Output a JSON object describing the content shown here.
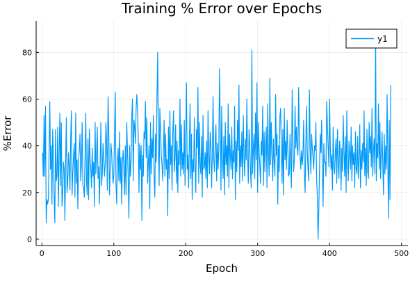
{
  "chart_data": {
    "type": "line",
    "title": "Training % Error over Epochs",
    "xlabel": "Epoch",
    "ylabel": "%Error",
    "xlim": [
      -8,
      509
    ],
    "ylim": [
      -2.7,
      93.5
    ],
    "xticks": [
      0,
      100,
      200,
      300,
      400,
      500
    ],
    "yticks": [
      0,
      20,
      40,
      60,
      80
    ],
    "grid": true,
    "legend": {
      "position": "top-right"
    },
    "series": [
      {
        "name": "y1",
        "color": "#009AFA",
        "x_start": 1,
        "x_step": 1,
        "values": [
          37,
          27,
          53,
          27,
          57,
          7,
          17,
          15,
          17,
          38,
          59,
          30,
          40,
          15,
          47,
          35,
          18,
          7,
          47,
          25,
          27,
          48,
          14,
          37,
          54,
          23,
          50,
          14,
          20,
          33,
          30,
          8,
          33,
          52,
          20,
          25,
          37,
          31,
          21,
          43,
          55,
          19,
          29,
          36,
          41,
          18,
          54,
          24,
          34,
          13,
          34,
          38,
          45,
          25,
          32,
          50,
          23,
          22,
          18,
          36,
          54,
          25,
          19,
          43,
          17,
          47,
          35,
          30,
          22,
          39,
          27,
          33,
          14,
          50,
          28,
          36,
          48,
          26,
          31,
          15,
          32,
          50,
          23,
          28,
          41,
          35,
          27,
          32,
          50,
          42,
          21,
          61,
          46,
          19,
          30,
          41,
          37,
          29,
          24,
          28,
          45,
          63,
          24,
          15,
          34,
          39,
          25,
          46,
          24,
          35,
          15,
          33,
          38,
          30,
          19,
          40,
          19,
          50,
          38,
          26,
          9,
          40,
          27,
          33,
          53,
          60,
          25,
          51,
          48,
          41,
          56,
          62,
          55,
          44,
          20,
          41,
          30,
          40,
          8,
          36,
          27,
          46,
          43,
          59,
          35,
          52,
          24,
          33,
          40,
          13,
          50,
          28,
          43,
          35,
          53,
          27,
          18,
          45,
          33,
          60,
          80,
          42,
          23,
          56,
          47,
          36,
          32,
          25,
          38,
          51,
          27,
          45,
          30,
          34,
          10,
          48,
          26,
          55,
          32,
          40,
          21,
          46,
          55,
          29,
          35,
          49,
          24,
          42,
          20,
          38,
          32,
          60,
          27,
          49,
          30,
          37,
          28,
          51,
          23,
          42,
          67,
          30,
          36,
          22,
          41,
          58,
          26,
          45,
          17,
          34,
          29,
          52,
          33,
          20,
          47,
          39,
          65,
          24,
          50,
          32,
          28,
          44,
          18,
          53,
          30,
          31,
          37,
          26,
          42,
          22,
          55,
          35,
          28,
          46,
          40,
          22,
          36,
          61,
          34,
          29,
          42,
          49,
          25,
          41,
          30,
          39,
          73,
          47,
          21,
          57,
          35,
          26,
          44,
          19,
          50,
          32,
          40,
          27,
          58,
          22,
          45,
          36,
          30,
          48,
          26,
          38,
          33,
          57,
          17,
          42,
          29,
          51,
          38,
          66,
          24,
          40,
          31,
          46,
          25,
          53,
          35,
          27,
          43,
          34,
          60,
          36,
          24,
          47,
          41,
          30,
          22,
          81,
          28,
          39,
          45,
          26,
          54,
          34,
          67,
          20,
          50,
          38,
          31,
          24,
          42,
          36,
          57,
          23,
          46,
          29,
          40,
          48,
          22,
          58,
          37,
          27,
          69,
          32,
          50,
          36,
          25,
          43,
          34,
          27,
          62,
          36,
          45,
          15,
          40,
          29,
          53,
          56,
          37,
          24,
          47,
          19,
          56,
          34,
          42,
          30,
          51,
          38,
          27,
          28,
          45,
          32,
          22,
          64,
          44,
          29,
          34,
          57,
          39,
          48,
          39,
          36,
          65,
          42,
          36,
          30,
          38,
          32,
          36,
          51,
          28,
          20,
          41,
          57,
          38,
          30,
          25,
          64,
          40,
          28,
          45,
          39,
          35,
          30,
          40,
          38,
          50,
          26,
          18,
          0,
          12,
          30,
          45,
          37,
          51,
          28,
          14,
          41,
          33,
          33,
          27,
          59,
          49,
          40,
          31,
          60,
          40,
          30,
          36,
          21,
          48,
          31,
          28,
          37,
          43,
          24,
          47,
          33,
          26,
          42,
          37,
          21,
          39,
          29,
          53,
          38,
          27,
          44,
          20,
          55,
          33,
          25,
          42,
          36,
          30,
          48,
          25,
          40,
          32,
          37,
          22,
          46,
          30,
          28,
          44,
          26,
          35,
          49,
          22,
          38,
          30,
          41,
          33,
          55,
          27,
          39,
          23,
          47,
          29,
          26,
          50,
          37,
          44,
          31,
          56,
          27,
          38,
          43,
          28,
          90,
          25,
          41,
          35,
          58,
          30,
          50,
          26,
          36,
          46,
          32,
          19,
          45,
          28,
          40,
          30,
          62,
          33,
          9,
          51,
          17,
          66
        ]
      }
    ]
  }
}
